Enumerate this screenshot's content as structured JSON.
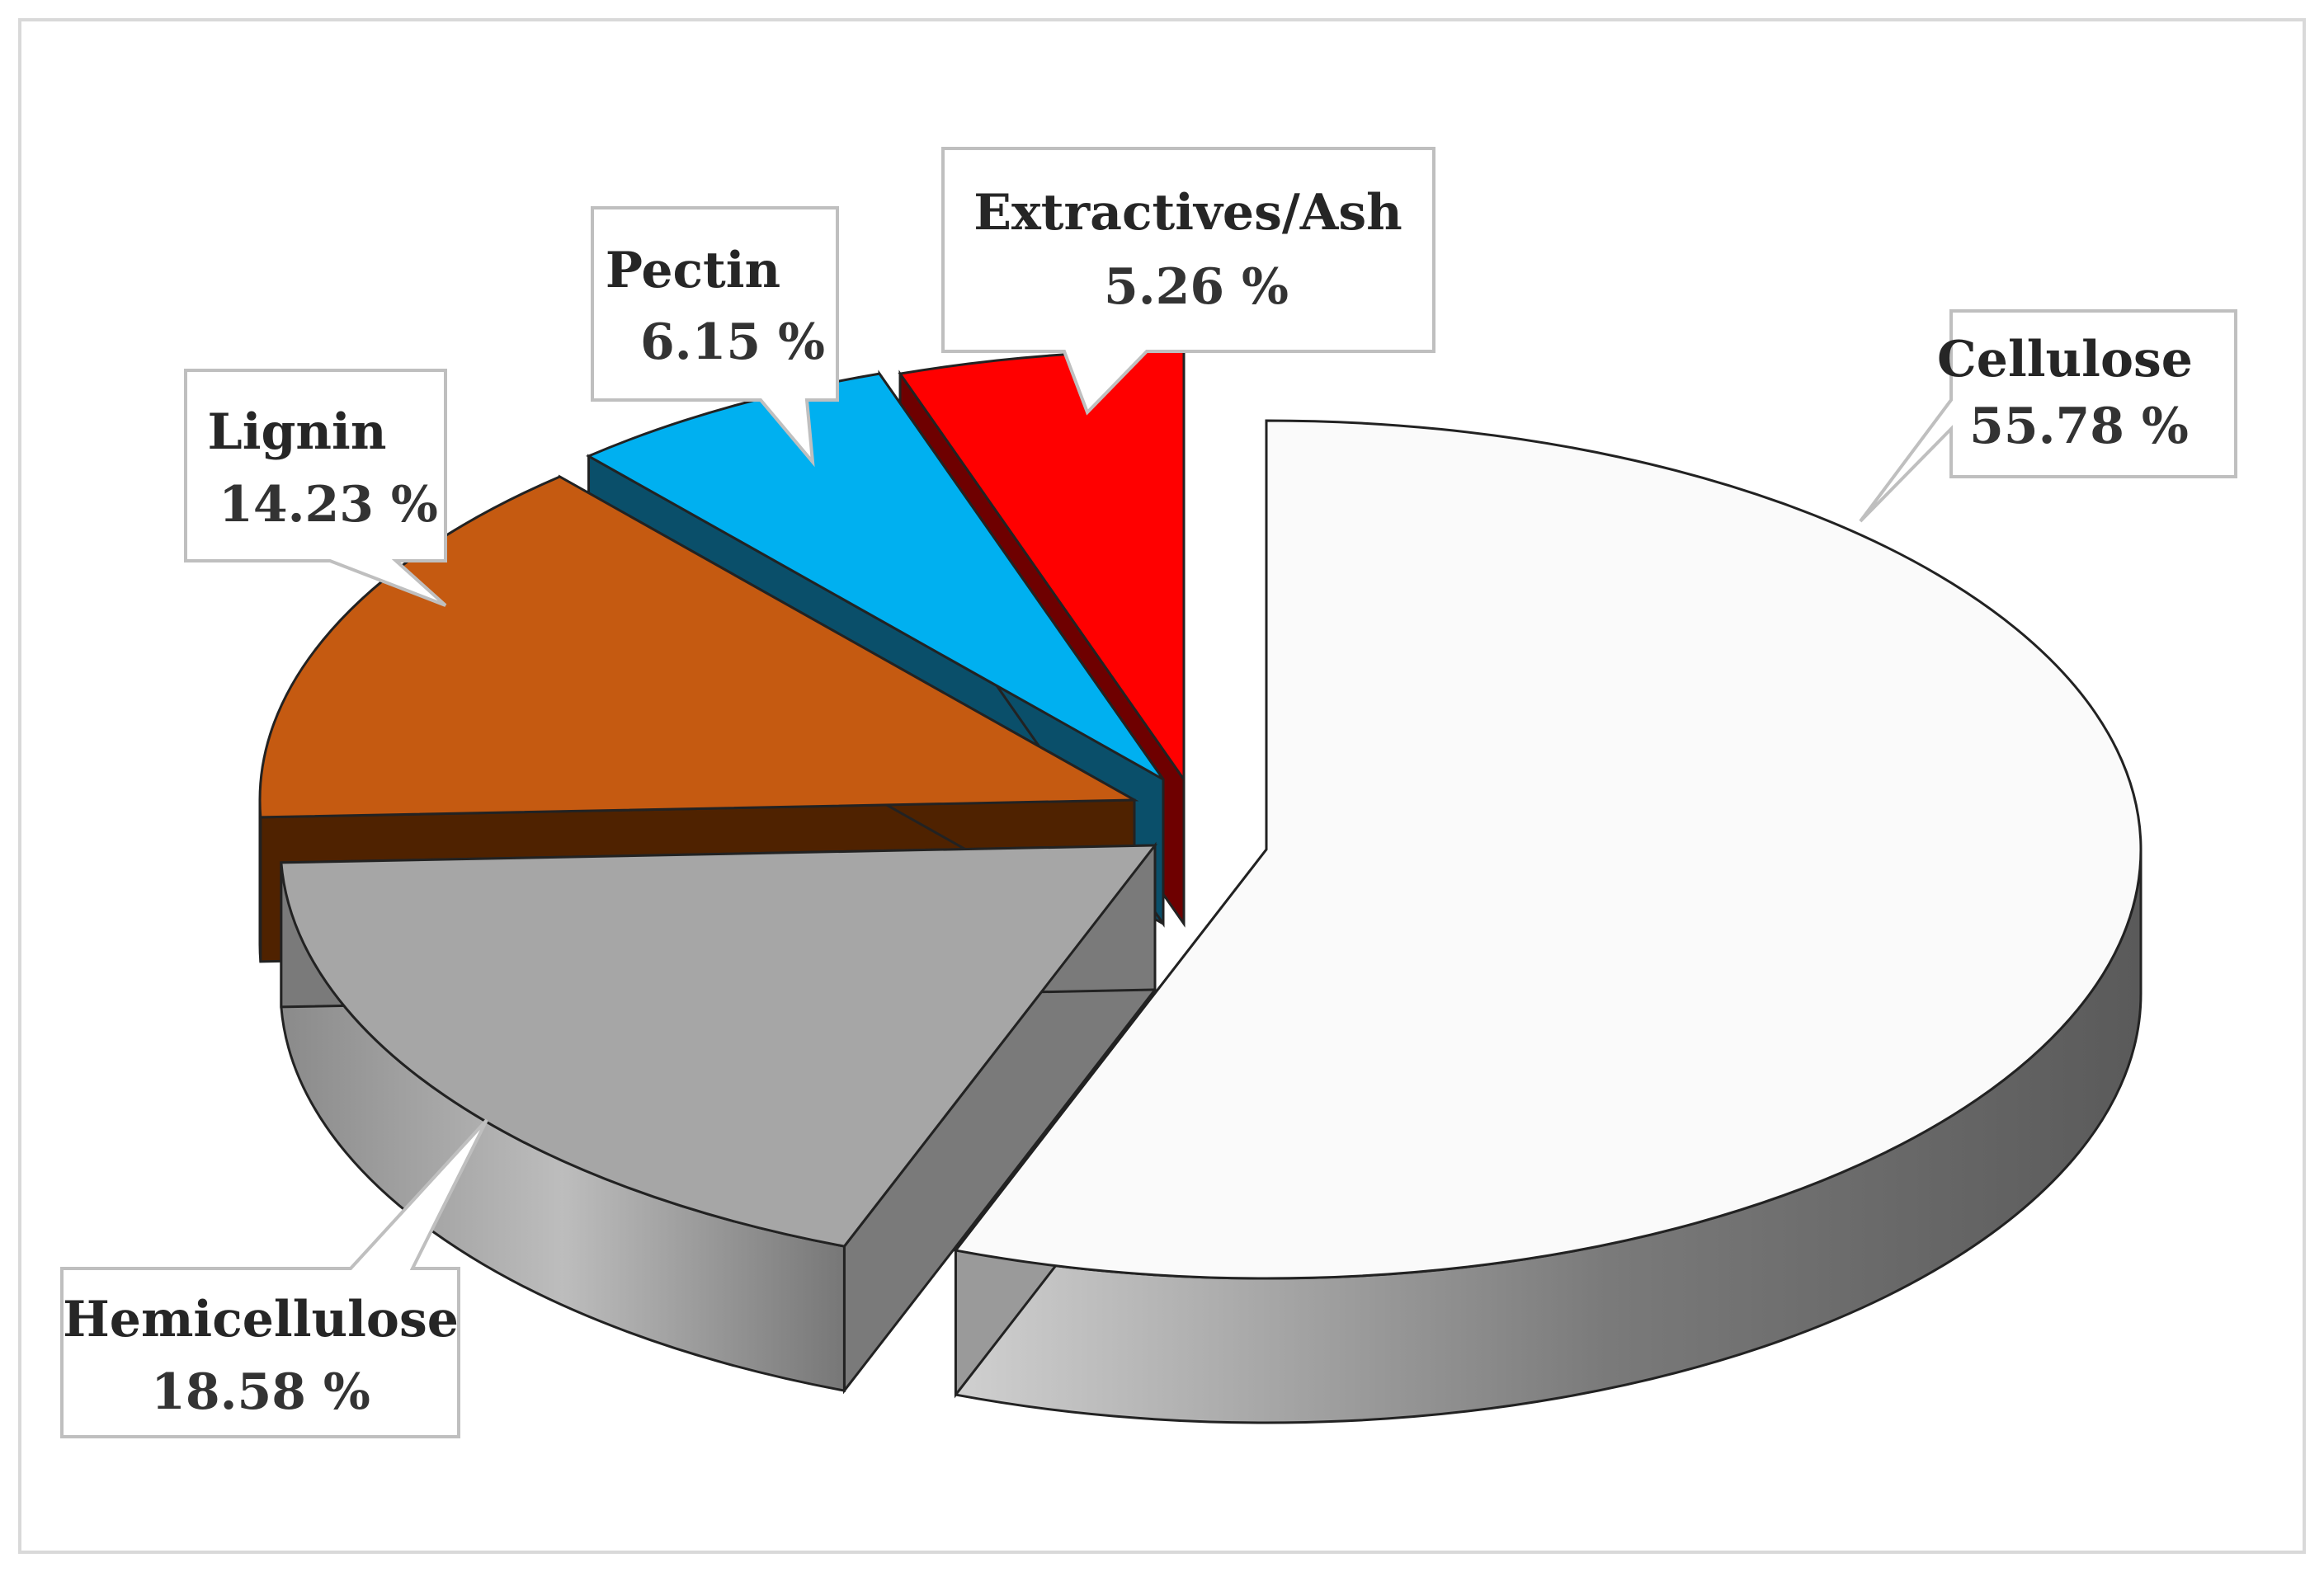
{
  "chart_data": {
    "type": "pie",
    "style": "3d-exploded",
    "slices": [
      {
        "label": "Cellulose",
        "value": 55.78,
        "value_text": "55.78 %",
        "color": "#fafafa",
        "side_color": "#9a9a9a"
      },
      {
        "label": "Hemicellulose",
        "value": 18.58,
        "value_text": "18.58 %",
        "color": "#a6a6a6",
        "side_color": "#7a7a7a"
      },
      {
        "label": "Lignin",
        "value": 14.23,
        "value_text": "14.23 %",
        "color": "#c55a11",
        "side_color": "#4f2200"
      },
      {
        "label": "Pectin",
        "value": 6.15,
        "value_text": "6.15 %",
        "color": "#00b0f0",
        "side_color": "#0a4f6a"
      },
      {
        "label": "Extractives/Ash",
        "value": 5.26,
        "value_text": "5.26 %",
        "color": "#ff0000",
        "side_color": "#6e0000"
      }
    ],
    "labels_style": "callout-boxes",
    "legend": "none"
  }
}
